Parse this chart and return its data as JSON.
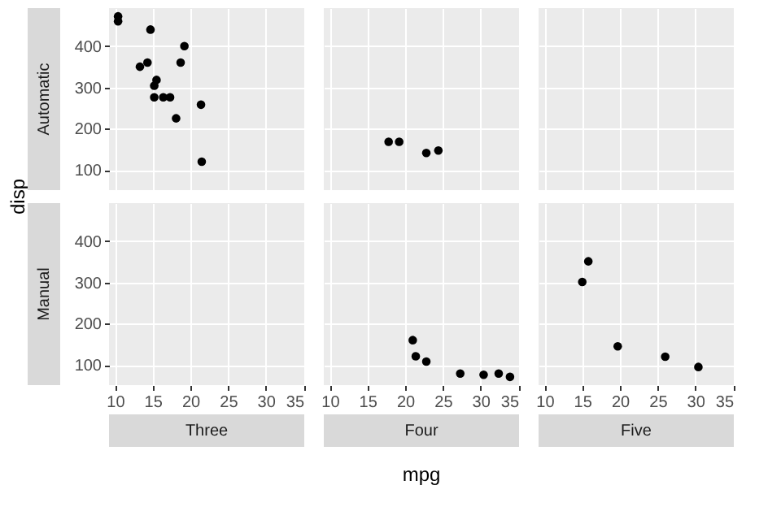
{
  "chart_data": [
    {
      "type": "scatter",
      "ylabel": "Automatic",
      "x": [
        21.4,
        18.7,
        18.1,
        14.3,
        16.4,
        17.3,
        15.2,
        10.4,
        10.4,
        14.7,
        21.5,
        15.5,
        15.2,
        13.3,
        19.2
      ],
      "series": [
        {
          "color": "#000000",
          "values": [
            258,
            360,
            225,
            360,
            276,
            276,
            276,
            472,
            460,
            440,
            120,
            318,
            304,
            350,
            400
          ]
        }
      ],
      "xlim": [
        9.2,
        35.1
      ],
      "ylim": [
        51,
        492
      ],
      "xticks": [
        10,
        15,
        20,
        25,
        30,
        35
      ],
      "yticks": [
        100,
        200,
        300,
        400
      ],
      "grid": true,
      "marker": "circle",
      "tick_labels": "y"
    },
    {
      "type": "scatter",
      "x": [
        24.4,
        22.8,
        19.2,
        17.8
      ],
      "series": [
        {
          "color": "#000000",
          "values": [
            147,
            141,
            168,
            168
          ]
        }
      ],
      "xlim": [
        9.2,
        35.1
      ],
      "ylim": [
        51,
        492
      ],
      "xticks": [
        10,
        15,
        20,
        25,
        30,
        35
      ],
      "yticks": [
        100,
        200,
        300,
        400
      ],
      "grid": true,
      "marker": "circle",
      "tick_labels": false
    },
    {
      "type": "scatter",
      "xlim": [
        9.2,
        35.1
      ],
      "ylim": [
        51,
        492
      ],
      "xticks": [
        10,
        15,
        20,
        25,
        30,
        35
      ],
      "yticks": [
        100,
        200,
        300,
        400
      ],
      "grid": true,
      "tick_labels": false
    },
    {
      "type": "scatter",
      "ylabel": "Manual",
      "xlabel": "Three",
      "annotations": [
        "disp"
      ],
      "xlim": [
        9.2,
        35.1
      ],
      "ylim": [
        51,
        492
      ],
      "xticks": [
        10,
        15,
        20,
        25,
        30,
        35
      ],
      "yticks": [
        100,
        200,
        300,
        400
      ],
      "grid": true
    },
    {
      "type": "scatter",
      "xlabel": "Four",
      "annotations": [
        "mpg"
      ],
      "x": [
        21.0,
        22.8,
        32.4,
        30.4,
        33.9,
        27.3,
        21.4
      ],
      "series": [
        {
          "color": "#000000",
          "values": [
            160,
            108,
            79,
            76,
            71,
            79,
            121
          ]
        }
      ],
      "xlim": [
        9.2,
        35.1
      ],
      "ylim": [
        51,
        492
      ],
      "xticks": [
        10,
        15,
        20,
        25,
        30,
        35
      ],
      "yticks": [
        100,
        200,
        300,
        400
      ],
      "grid": true,
      "marker": "circle",
      "tick_labels": "x"
    },
    {
      "type": "scatter",
      "xlabel": "Five",
      "x": [
        26.0,
        30.4,
        15.8,
        19.7,
        15.0
      ],
      "series": [
        {
          "color": "#000000",
          "values": [
            120,
            95,
            351,
            145,
            301
          ]
        }
      ],
      "xlim": [
        9.2,
        35.1
      ],
      "ylim": [
        51,
        492
      ],
      "xticks": [
        10,
        15,
        20,
        25,
        30,
        35
      ],
      "yticks": [
        100,
        200,
        300,
        400
      ],
      "grid": true,
      "marker": "circle",
      "tick_labels": "x"
    }
  ]
}
